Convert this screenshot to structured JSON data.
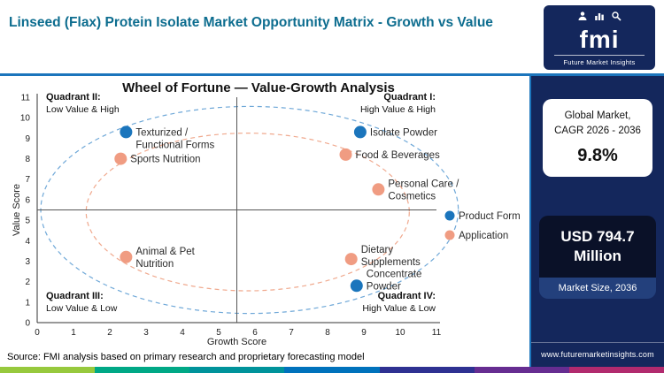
{
  "header": {
    "title": "Linseed (Flax) Protein Isolate Market Opportunity Matrix - Growth vs Value",
    "logo": {
      "brand": "fmi",
      "tagline": "Future Market Insights"
    }
  },
  "chart_data": {
    "type": "scatter",
    "title": "Wheel of Fortune — Value-Growth Analysis",
    "xlabel": "Growth Score",
    "ylabel": "Value Score",
    "xlim": [
      0,
      11
    ],
    "ylim": [
      0,
      11
    ],
    "x_ticks": [
      0,
      1,
      2,
      3,
      4,
      5,
      6,
      7,
      8,
      9,
      10,
      11
    ],
    "y_ticks": [
      0,
      1,
      2,
      3,
      4,
      5,
      6,
      7,
      8,
      9,
      10,
      11
    ],
    "grid": false,
    "legend_position": "right",
    "crosshair": {
      "x": 5.5,
      "y": 5.5
    },
    "quadrants": [
      {
        "name": "Quadrant II:",
        "desc": "Low Value & High",
        "position": "top-left"
      },
      {
        "name": "Quadrant I:",
        "desc": "High Value & High",
        "position": "top-right"
      },
      {
        "name": "Quadrant III:",
        "desc": "Low Value & Low",
        "position": "bottom-left"
      },
      {
        "name": "Quadrant IV:",
        "desc": "High Value & Low",
        "position": "bottom-right"
      }
    ],
    "ellipses": [
      {
        "name": "outer-ellipse",
        "cx": 5.85,
        "cy": 5.5,
        "rx": 5.75,
        "ry": 5.05,
        "color": "#6fa8d8"
      },
      {
        "name": "inner-ellipse",
        "cx": 5.8,
        "cy": 5.4,
        "rx": 4.45,
        "ry": 3.85,
        "color": "#f0a98e"
      }
    ],
    "series": [
      {
        "name": "Product Form",
        "color": "#1b75bc",
        "points": [
          {
            "label": "Texturized / Functional Forms",
            "label_lines": [
              "Texturized /",
              "Functional Forms"
            ],
            "x": 2.45,
            "y": 9.3,
            "label_dy": 7
          },
          {
            "label": "Isolate Powder",
            "label_lines": [
              "Isolate Powder"
            ],
            "x": 8.9,
            "y": 9.3
          },
          {
            "label": "Concentrate Powder",
            "label_lines": [
              "Concentrate",
              "Powder"
            ],
            "x": 8.8,
            "y": 1.8,
            "label_dy": -7
          }
        ]
      },
      {
        "name": "Application",
        "color": "#f09c82",
        "points": [
          {
            "label": "Sports Nutrition",
            "label_lines": [
              "Sports Nutrition"
            ],
            "x": 2.3,
            "y": 8.0
          },
          {
            "label": "Food & Beverages",
            "label_lines": [
              "Food & Beverages"
            ],
            "x": 8.5,
            "y": 8.2
          },
          {
            "label": "Personal Care / Cosmetics",
            "label_lines": [
              "Personal Care /",
              "Cosmetics"
            ],
            "x": 9.4,
            "y": 6.5
          },
          {
            "label": "Animal & Pet Nutrition",
            "label_lines": [
              "Animal & Pet",
              "Nutrition"
            ],
            "x": 2.45,
            "y": 3.2
          },
          {
            "label": "Dietary Supplements",
            "label_lines": [
              "Dietary",
              "Supplements"
            ],
            "x": 8.65,
            "y": 3.1,
            "label_dy": -4
          }
        ]
      }
    ]
  },
  "sidebar": {
    "card_cagr": {
      "line1": "Global Market,",
      "line2": "CAGR 2026 - 2036",
      "value": "9.8%"
    },
    "card_size": {
      "value_line1": "USD 794.7",
      "value_line2": "Million",
      "label": "Market Size, 2036"
    },
    "website": "www.futuremarketinsights.com"
  },
  "footer": {
    "source": "Source: FMI analysis based on primary research and proprietary forecasting model"
  },
  "colors": {
    "navy": "#14275c",
    "accent_blue": "#1c75bc",
    "title_teal": "#0d6d8f",
    "product_form_dot": "#1b75bc",
    "application_dot": "#f09c82"
  },
  "brand_strip_colors": [
    "#97c93d",
    "#00a886",
    "#00939b",
    "#0072bc",
    "#2e3192",
    "#662d91",
    "#b12a6e"
  ]
}
